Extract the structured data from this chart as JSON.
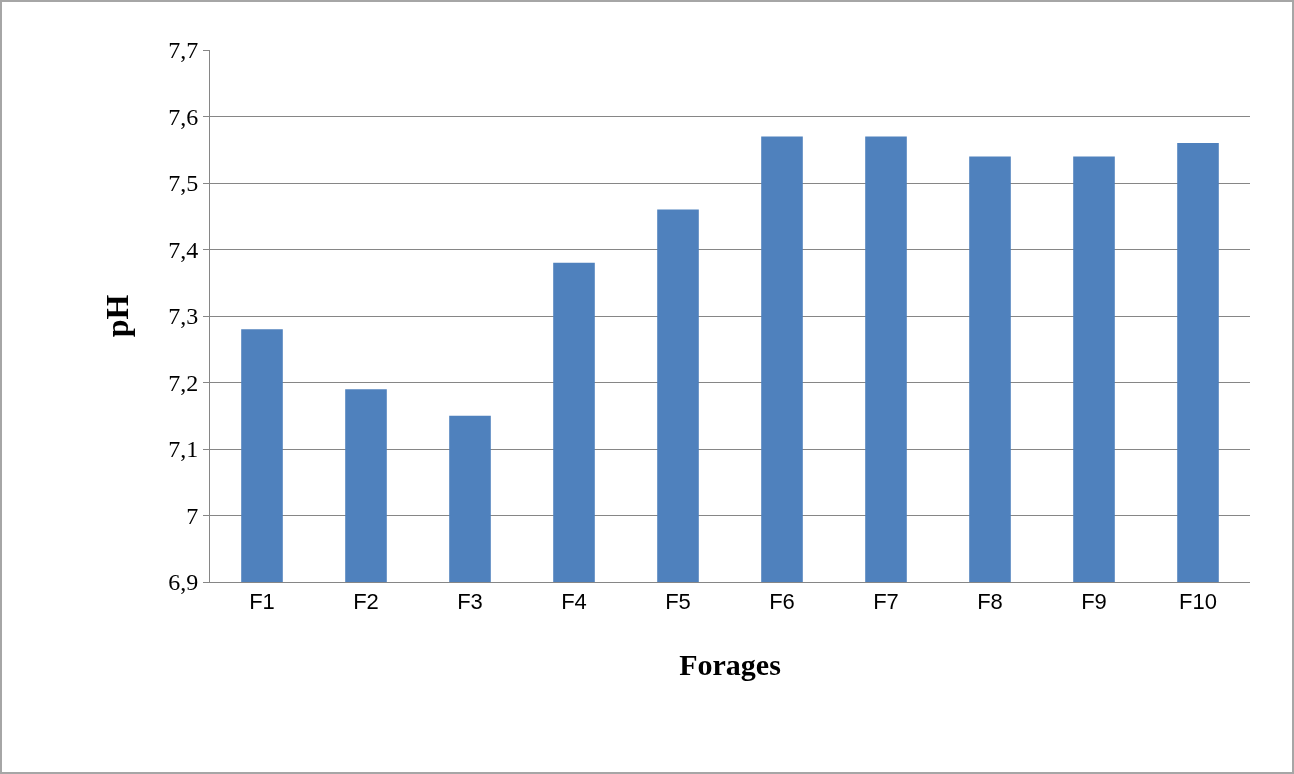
{
  "chart_data": {
    "type": "bar",
    "xlabel": "Forages",
    "ylabel": "pH",
    "categories": [
      "F1",
      "F2",
      "F3",
      "F4",
      "F5",
      "F6",
      "F7",
      "F8",
      "F9",
      "F10"
    ],
    "values": [
      7.28,
      7.19,
      7.15,
      7.38,
      7.46,
      7.57,
      7.57,
      7.54,
      7.54,
      7.56
    ],
    "color": "#4f81bd",
    "ylim": [
      6.9,
      7.7
    ],
    "yticks": [
      {
        "value": 6.9,
        "label": "6,9"
      },
      7,
      {
        "value": 7.1,
        "label": "7,1"
      },
      {
        "value": 7.2,
        "label": "7,2"
      },
      {
        "value": 7.3,
        "label": "7,3"
      },
      {
        "value": 7.4,
        "label": "7,4"
      },
      {
        "value": 7.5,
        "label": "7,5"
      },
      {
        "value": 7.6,
        "label": "7,6"
      },
      {
        "value": 7.7,
        "label": "7,7"
      }
    ],
    "grid": "y"
  }
}
